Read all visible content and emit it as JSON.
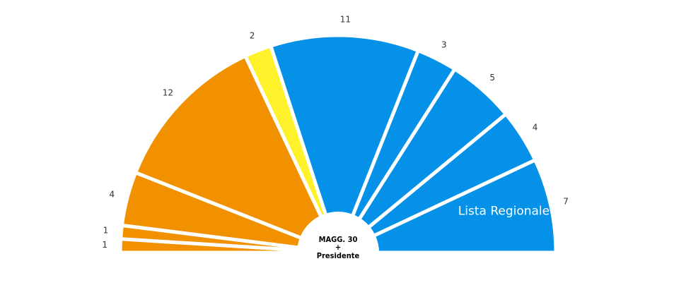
{
  "chart_data": {
    "type": "pie",
    "values": [
      1,
      1,
      4,
      12,
      2,
      11,
      3,
      5,
      4,
      7
    ],
    "colors": [
      "#f29100",
      "#f29100",
      "#f29100",
      "#f29100",
      "#fff22a",
      "#0591e8",
      "#0591e8",
      "#0591e8",
      "#0591e8",
      "#0591e8"
    ],
    "center_label": [
      "MAGG. 30",
      "+",
      "Presidente"
    ],
    "annotation": "Lista Regionale"
  }
}
